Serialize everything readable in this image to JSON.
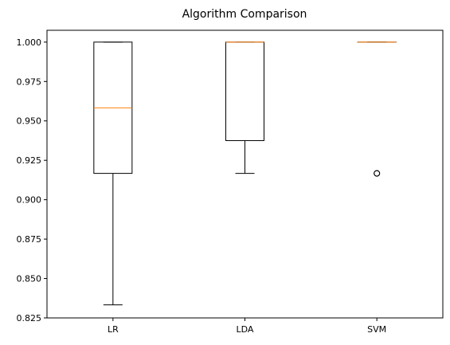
{
  "chart_data": {
    "type": "boxplot",
    "title": "Algorithm Comparison",
    "xlabel": "",
    "ylabel": "",
    "ylim": [
      0.825,
      1.0075
    ],
    "yticks": [
      "0.825",
      "0.850",
      "0.875",
      "0.900",
      "0.925",
      "0.950",
      "0.975",
      "1.000"
    ],
    "categories": [
      "LR",
      "LDA",
      "SVM"
    ],
    "boxes": [
      {
        "name": "LR",
        "whisker_low": 0.8333,
        "q1": 0.9167,
        "median": 0.9583,
        "q3": 1.0,
        "whisker_high": 1.0,
        "fliers": []
      },
      {
        "name": "LDA",
        "whisker_low": 0.9167,
        "q1": 0.9375,
        "median": 1.0,
        "q3": 1.0,
        "whisker_high": 1.0,
        "fliers": []
      },
      {
        "name": "SVM",
        "whisker_low": 1.0,
        "q1": 1.0,
        "median": 1.0,
        "q3": 1.0,
        "whisker_high": 1.0,
        "fliers": [
          0.9167
        ]
      }
    ],
    "grid": false,
    "colors": {
      "box": "#000000",
      "median": "#ff7f0e",
      "flier": "#000000"
    }
  }
}
